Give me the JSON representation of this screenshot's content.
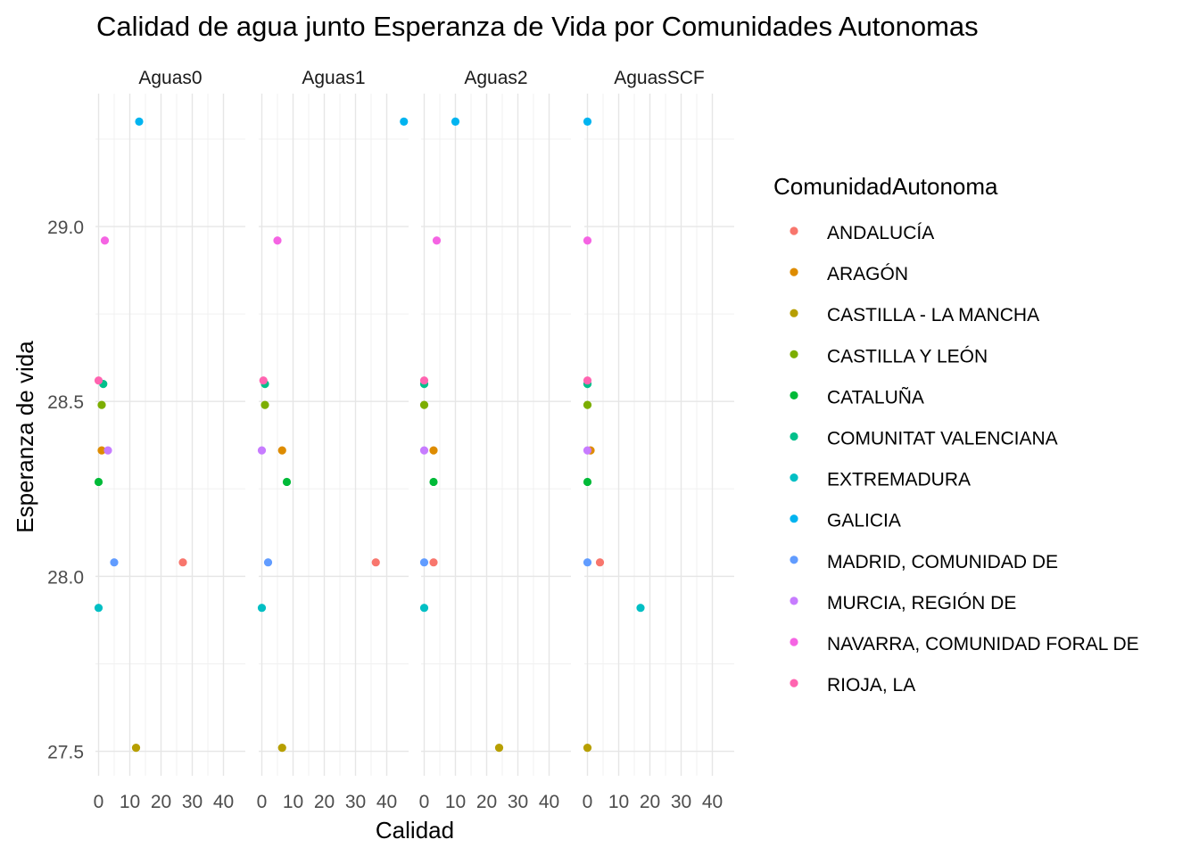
{
  "chart_data": {
    "type": "scatter",
    "title": "Calidad de agua junto Esperanza de Vida por Comunidades Autonomas",
    "xlabel": "Calidad",
    "ylabel": "Esperanza de vida",
    "xlim": [
      -1,
      47
    ],
    "ylim": [
      27.43,
      29.38
    ],
    "x_ticks": [
      0,
      10,
      20,
      30,
      40
    ],
    "x_tick_labels": [
      "0",
      "10",
      "20",
      "30",
      "40"
    ],
    "y_ticks": [
      27.5,
      28.0,
      28.5,
      29.0
    ],
    "y_tick_labels": [
      "27.5",
      "28.0",
      "28.5",
      "29.0"
    ],
    "grid": true,
    "legend_title": "ComunidadAutonoma",
    "legend_position": "right",
    "facets": [
      "Aguas0",
      "Aguas1",
      "Aguas2",
      "AguasSCF"
    ],
    "series": [
      {
        "name": "ANDALUCÍA",
        "color": "#F8766D",
        "y": 28.04,
        "x": [
          27,
          36.5,
          3,
          4
        ]
      },
      {
        "name": "ARAGÓN",
        "color": "#DE8C00",
        "y": 28.36,
        "x": [
          1,
          6.5,
          3,
          1
        ]
      },
      {
        "name": "CASTILLA - LA MANCHA",
        "color": "#B79F00",
        "y": 27.51,
        "x": [
          12,
          6.5,
          24,
          0
        ]
      },
      {
        "name": "CASTILLA Y LEÓN",
        "color": "#7CAE00",
        "y": 28.49,
        "x": [
          1,
          1,
          0,
          0
        ]
      },
      {
        "name": "CATALUÑA",
        "color": "#00BA38",
        "y": 28.27,
        "x": [
          0,
          8,
          3,
          0
        ]
      },
      {
        "name": "COMUNITAT VALENCIANA",
        "color": "#00C08B",
        "y": 28.55,
        "x": [
          1.5,
          1,
          0,
          0
        ]
      },
      {
        "name": "EXTREMADURA",
        "color": "#00BFC4",
        "y": 27.91,
        "x": [
          0,
          0,
          0,
          17
        ]
      },
      {
        "name": "GALICIA",
        "color": "#00B4F0",
        "y": 29.3,
        "x": [
          13,
          45.5,
          10,
          0
        ]
      },
      {
        "name": "MADRID, COMUNIDAD DE",
        "color": "#619CFF",
        "y": 28.04,
        "x": [
          5,
          2,
          0,
          0
        ]
      },
      {
        "name": "MURCIA, REGIÓN DE",
        "color": "#C77CFF",
        "y": 28.36,
        "x": [
          3,
          0,
          0,
          0
        ]
      },
      {
        "name": "NAVARRA, COMUNIDAD FORAL DE",
        "color": "#F564E3",
        "y": 28.96,
        "x": [
          2,
          5,
          4,
          0
        ]
      },
      {
        "name": "RIOJA, LA",
        "color": "#FF64B0",
        "y": 28.56,
        "x": [
          0,
          0.5,
          0,
          0
        ]
      }
    ]
  }
}
